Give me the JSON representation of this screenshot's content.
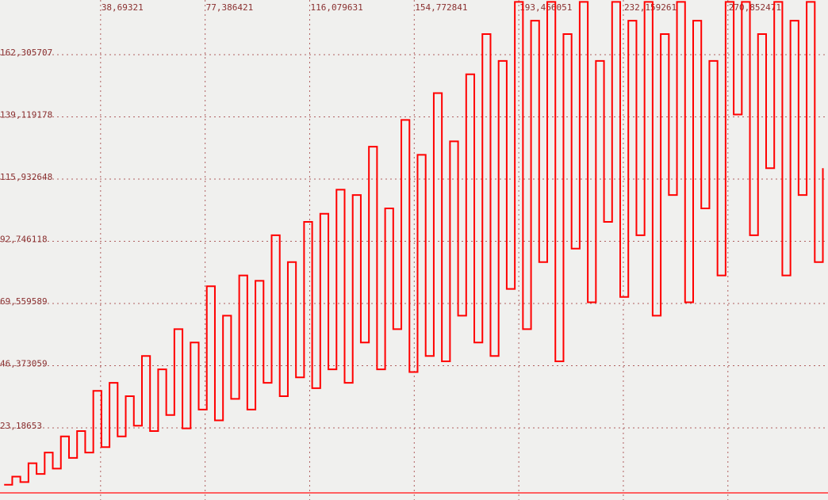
{
  "chart_data": {
    "type": "step",
    "x": [
      3,
      6,
      9,
      12,
      15,
      18,
      21,
      24,
      27,
      30,
      33,
      36,
      39,
      42,
      45,
      48,
      51,
      54,
      57,
      60,
      63,
      66,
      69,
      72,
      75,
      78,
      81,
      84,
      87,
      90,
      93,
      96,
      99,
      102,
      105,
      108,
      111,
      114,
      117,
      120,
      123,
      126,
      129,
      132,
      135,
      138,
      141,
      144,
      147,
      150,
      153,
      156,
      159,
      162,
      165,
      168,
      171,
      174,
      177,
      180,
      183,
      186,
      189,
      192,
      195,
      198,
      201,
      204,
      207,
      210,
      213,
      216,
      219,
      222,
      225,
      228,
      231,
      234,
      237,
      240,
      243,
      246,
      249,
      252,
      255,
      258,
      261,
      264,
      267,
      270,
      273,
      276,
      279,
      282,
      285,
      288,
      291,
      294,
      297,
      300,
      303,
      306
    ],
    "series": [
      {
        "color": "#ff0000",
        "values": [
          2,
          5,
          3,
          10,
          6,
          14,
          8,
          20,
          12,
          22,
          14,
          37,
          16,
          40,
          20,
          35,
          24,
          50,
          22,
          45,
          28,
          60,
          23,
          55,
          30,
          76,
          26,
          65,
          34,
          80,
          30,
          78,
          40,
          95,
          35,
          85,
          42,
          100,
          38,
          103,
          45,
          112,
          40,
          110,
          55,
          128,
          45,
          105,
          60,
          138,
          44,
          125,
          50,
          148,
          48,
          130,
          65,
          155,
          55,
          170,
          50,
          160,
          75,
          182,
          60,
          175,
          85,
          182,
          48,
          170,
          90,
          182,
          70,
          160,
          100,
          182,
          72,
          175,
          95,
          182,
          65,
          170,
          110,
          182,
          70,
          175,
          105,
          160,
          80,
          182,
          140,
          182,
          95,
          170,
          120,
          182,
          80,
          175,
          110,
          182,
          85,
          120
        ]
      }
    ],
    "xlim": [
      1.47,
      307.9
    ],
    "ylim": [
      -3.7,
      182.7
    ],
    "xticks": [
      {
        "value": 38.69321,
        "label": "38,69321"
      },
      {
        "value": 77.386421,
        "label": "77,386421"
      },
      {
        "value": 116.079631,
        "label": "116,079631"
      },
      {
        "value": 154.772841,
        "label": "154,772841"
      },
      {
        "value": 193.466051,
        "label": "193,466051"
      },
      {
        "value": 232.159261,
        "label": "232,159261"
      },
      {
        "value": 270.852471,
        "label": "270,852471"
      }
    ],
    "yticks": [
      {
        "value": 23.18653,
        "label": "23,18653"
      },
      {
        "value": 46.373059,
        "label": "46,373059"
      },
      {
        "value": 69.559589,
        "label": "69,559589"
      },
      {
        "value": 92.746118,
        "label": "92,746118"
      },
      {
        "value": 115.932648,
        "label": "115,932648"
      },
      {
        "value": 139.119178,
        "label": "139,119178"
      },
      {
        "value": 162.305707,
        "label": "162,305707"
      }
    ],
    "grid": true
  }
}
